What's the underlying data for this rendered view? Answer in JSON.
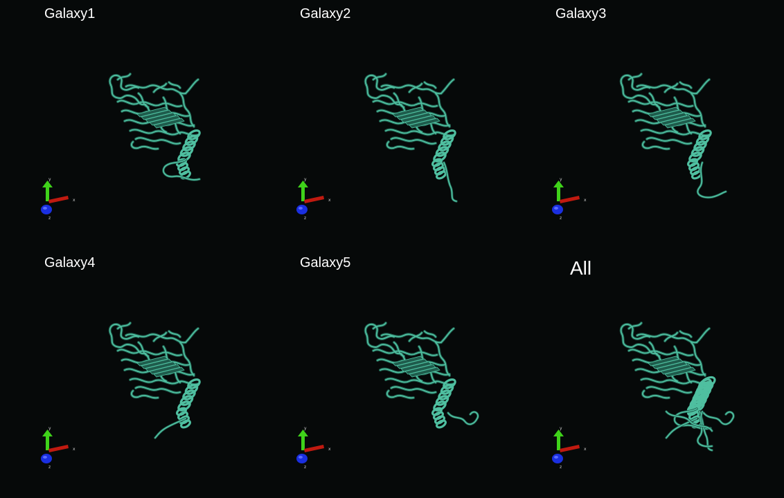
{
  "panels": [
    {
      "title": "Galaxy1",
      "axis_labels": {
        "x": "x",
        "y": "y",
        "z": "z"
      }
    },
    {
      "title": "Galaxy2",
      "axis_labels": {
        "x": "x",
        "y": "y",
        "z": "z"
      }
    },
    {
      "title": "Galaxy3",
      "axis_labels": {
        "x": "x",
        "y": "y",
        "z": "z"
      }
    },
    {
      "title": "Galaxy4",
      "axis_labels": {
        "x": "x",
        "y": "y",
        "z": "z"
      }
    },
    {
      "title": "Galaxy5",
      "axis_labels": {
        "x": "x",
        "y": "y",
        "z": "z"
      }
    },
    {
      "title": "All",
      "axis_labels": {
        "x": "x",
        "y": "y",
        "z": "z"
      }
    }
  ],
  "colors": {
    "background": "#060909",
    "ribbon": "#4fbfa0",
    "ribbon_dark": "#1f5c4c",
    "x_axis": "#c01a10",
    "y_axis": "#3fd21a",
    "z_axis": "#1a2fe0",
    "title_text": "#ffffff"
  },
  "icons": {
    "structure": "protein-ribbon-icon",
    "axes": "xyz-axes-icon"
  }
}
